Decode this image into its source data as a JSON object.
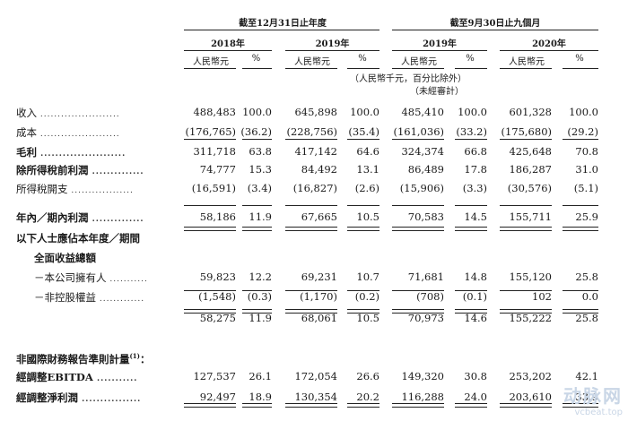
{
  "header": {
    "period_fy": "截至12月31日止年度",
    "period_9m": "截至9月30日止九個月",
    "years": [
      "2018年",
      "2019年",
      "2019年",
      "2020年"
    ],
    "currency": "人民幣元",
    "percent": "%",
    "note_units": "（人民幣千元，百分比除外）",
    "note_unaudited": "（未經審計）"
  },
  "rows": [
    {
      "label": "收入",
      "bold": false,
      "dots": true,
      "values": [
        "488,483",
        "100.0",
        "645,898",
        "100.0",
        "485,410",
        "100.0",
        "601,328",
        "100.0"
      ]
    },
    {
      "label": "成本",
      "bold": false,
      "dots": true,
      "values": [
        "(176,765)",
        "(36.2)",
        "(228,756)",
        "(35.4)",
        "(161,036)",
        "(33.2)",
        "(175,680)",
        "(29.2)"
      ]
    },
    {
      "label": "毛利",
      "bold": true,
      "dots": true,
      "values": [
        "311,718",
        "63.8",
        "417,142",
        "64.6",
        "324,374",
        "66.8",
        "425,648",
        "70.8"
      ]
    },
    {
      "label": "除所得稅前利潤",
      "bold": true,
      "dots": true,
      "values": [
        "74,777",
        "15.3",
        "84,492",
        "13.1",
        "86,489",
        "17.8",
        "186,287",
        "31.0"
      ]
    },
    {
      "label": "所得稅開支",
      "bold": false,
      "dots": true,
      "values": [
        "(16,591)",
        "(3.4)",
        "(16,827)",
        "(2.6)",
        "(15,906)",
        "(3.3)",
        "(30,576)",
        "(5.1)"
      ]
    },
    {
      "label": "年內／期內利潤",
      "bold": true,
      "dots": true,
      "values": [
        "58,186",
        "11.9",
        "67,665",
        "10.5",
        "70,583",
        "14.5",
        "155,711",
        "25.9"
      ]
    },
    {
      "label": "以下人士應佔本年度／期間",
      "bold": true,
      "dots": false,
      "values": []
    },
    {
      "label": "全面收益總額",
      "bold": true,
      "dots": false,
      "indent": true,
      "values": []
    },
    {
      "label": "－本公司擁有人",
      "bold": false,
      "dots": true,
      "indent": true,
      "values": [
        "59,823",
        "12.2",
        "69,231",
        "10.7",
        "71,681",
        "14.8",
        "155,120",
        "25.8"
      ]
    },
    {
      "label": "－非控股權益",
      "bold": false,
      "dots": true,
      "indent": true,
      "values": [
        "(1,548)",
        "(0.3)",
        "(1,170)",
        "(0.2)",
        "(708)",
        "(0.1)",
        "102",
        "0.0"
      ]
    },
    {
      "label": "",
      "bold": false,
      "dots": false,
      "values": [
        "58,275",
        "11.9",
        "68,061",
        "10.5",
        "70,973",
        "14.6",
        "155,222",
        "25.8"
      ]
    },
    {
      "label": "非國際財務報告準則計量",
      "sup": "(1)",
      "suffix": "：",
      "bold": true,
      "dots": false,
      "values": []
    },
    {
      "label": "經調整EBITDA",
      "bold": true,
      "dots": true,
      "values": [
        "127,537",
        "26.1",
        "172,054",
        "26.6",
        "149,320",
        "30.8",
        "253,202",
        "42.1"
      ]
    },
    {
      "label": "經調整淨利潤",
      "bold": true,
      "dots": true,
      "values": [
        "92,497",
        "18.9",
        "130,354",
        "20.2",
        "116,288",
        "24.0",
        "203,610",
        "33.9"
      ]
    }
  ],
  "watermark": {
    "cn": "动脉网",
    "en": "vcbeat.top"
  }
}
